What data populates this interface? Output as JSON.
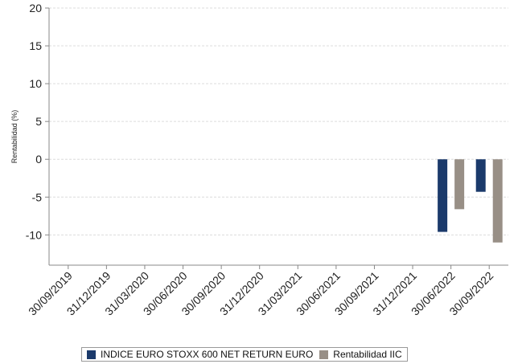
{
  "chart_data": {
    "type": "bar",
    "ylabel": "Rentabilidad (%)",
    "xlabel": "",
    "title": "",
    "ylim": [
      -14,
      20
    ],
    "yticks": [
      20,
      15,
      10,
      5,
      0,
      -5,
      -10
    ],
    "grid": true,
    "legend_position": "bottom",
    "categories": [
      "30/09/2019",
      "31/12/2019",
      "31/03/2020",
      "30/06/2020",
      "30/09/2020",
      "31/12/2020",
      "31/03/2021",
      "30/06/2021",
      "30/09/2021",
      "31/12/2021",
      "30/06/2022",
      "30/09/2022"
    ],
    "series": [
      {
        "name": "INDICE EURO STOXX 600 NET RETURN EURO",
        "color": "#1b3a6b",
        "values": [
          null,
          null,
          null,
          null,
          null,
          null,
          null,
          null,
          null,
          null,
          -9.6,
          -4.3
        ]
      },
      {
        "name": "Rentabilidad IIC",
        "color": "#988f86",
        "values": [
          null,
          null,
          null,
          null,
          null,
          null,
          null,
          null,
          null,
          null,
          -6.6,
          -11
        ]
      }
    ]
  }
}
